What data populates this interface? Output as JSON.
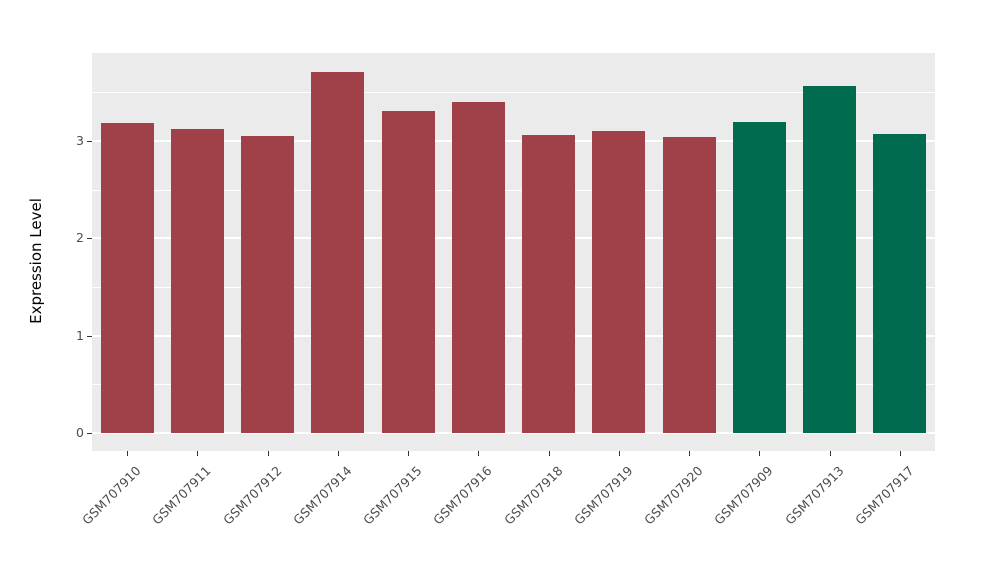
{
  "chart_data": {
    "type": "bar",
    "title": "",
    "xlabel": "",
    "ylabel": "Expression Level",
    "categories": [
      "GSM707910",
      "GSM707911",
      "GSM707912",
      "GSM707914",
      "GSM707915",
      "GSM707916",
      "GSM707918",
      "GSM707919",
      "GSM707920",
      "GSM707909",
      "GSM707913",
      "GSM707917"
    ],
    "values": [
      3.19,
      3.12,
      3.05,
      3.71,
      3.31,
      3.4,
      3.06,
      3.1,
      3.04,
      3.2,
      3.57,
      3.07
    ],
    "bar_colors": [
      "#A04048",
      "#A04048",
      "#A04048",
      "#A04048",
      "#A04048",
      "#A04048",
      "#A04048",
      "#A04048",
      "#A04048",
      "#016B4F",
      "#016B4F",
      "#016B4F"
    ],
    "group_colors": {
      "red_group": "#A04048",
      "green_group": "#016B4F"
    },
    "yticks": [
      0,
      1,
      2,
      3
    ],
    "ylim": [
      0,
      3.9
    ],
    "grid": "on",
    "legend": "none",
    "panel_background": "#EBEBEB",
    "gridline_color": "#ffffff"
  }
}
